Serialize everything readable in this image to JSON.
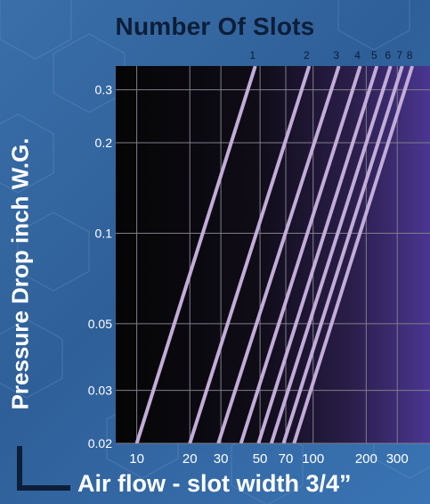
{
  "chart_data": {
    "type": "line",
    "title": "Number Of Slots",
    "xlabel": "Air flow - slot width 3/4”",
    "ylabel": "Pressure Drop inch W.G.",
    "x_scale": "log",
    "y_scale": "log",
    "xlim": [
      7.6,
      460
    ],
    "ylim": [
      0.02,
      0.36
    ],
    "x_ticks": [
      {
        "value": 10,
        "label": "10"
      },
      {
        "value": 20,
        "label": "20"
      },
      {
        "value": 30,
        "label": "30"
      },
      {
        "value": 50,
        "label": "50"
      },
      {
        "value": 70,
        "label": "70"
      },
      {
        "value": 100,
        "label": "100"
      },
      {
        "value": 200,
        "label": "200"
      },
      {
        "value": 300,
        "label": "300"
      }
    ],
    "y_ticks": [
      {
        "value": 0.02,
        "label": "0.02"
      },
      {
        "value": 0.03,
        "label": "0.03"
      },
      {
        "value": 0.05,
        "label": "0.05"
      },
      {
        "value": 0.1,
        "label": "0.1"
      },
      {
        "value": 0.2,
        "label": "0.2"
      },
      {
        "value": 0.3,
        "label": "0.3"
      }
    ],
    "grid": true,
    "line_color": "#c2acd8",
    "series": [
      {
        "name": "1",
        "x": [
          10,
          47
        ],
        "y": [
          0.02,
          0.36
        ]
      },
      {
        "name": "2",
        "x": [
          20,
          95
        ],
        "y": [
          0.02,
          0.36
        ]
      },
      {
        "name": "3",
        "x": [
          29,
          140
        ],
        "y": [
          0.02,
          0.36
        ]
      },
      {
        "name": "4",
        "x": [
          39,
          185
        ],
        "y": [
          0.02,
          0.36
        ]
      },
      {
        "name": "5",
        "x": [
          49,
          230
        ],
        "y": [
          0.02,
          0.36
        ]
      },
      {
        "name": "6",
        "x": [
          58,
          275
        ],
        "y": [
          0.02,
          0.36
        ]
      },
      {
        "name": "7",
        "x": [
          68,
          320
        ],
        "y": [
          0.02,
          0.36
        ]
      },
      {
        "name": "8",
        "x": [
          78,
          365
        ],
        "y": [
          0.02,
          0.36
        ]
      }
    ]
  }
}
